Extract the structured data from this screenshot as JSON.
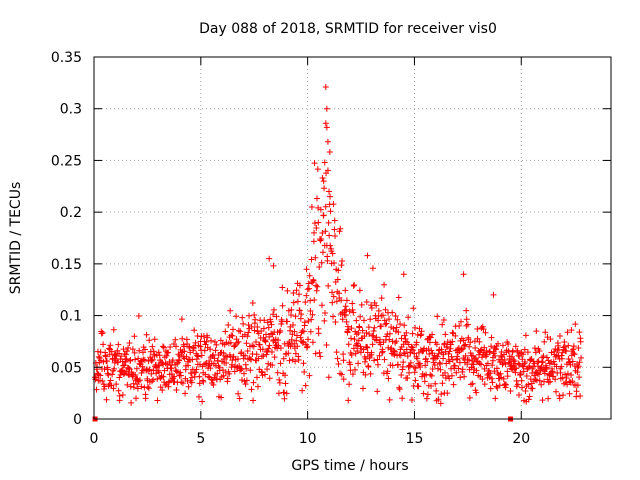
{
  "chart_data": {
    "type": "scatter",
    "title": "Day 088 of 2018, SRMTID for receiver vis0",
    "xlabel": "GPS time / hours",
    "ylabel": "SRMTID / TECUs",
    "xlim": [
      0,
      24.2
    ],
    "ylim": [
      0,
      0.35
    ],
    "xticks": [
      0,
      5,
      10,
      15,
      20
    ],
    "xtick_labels": [
      "0",
      "5",
      "10",
      "15",
      "20"
    ],
    "yticks": [
      0,
      0.05,
      0.1,
      0.15,
      0.2,
      0.25,
      0.3,
      0.35
    ],
    "ytick_labels": [
      "0",
      "0.05",
      "0.1",
      "0.15",
      "0.2",
      "0.25",
      "0.3",
      "0.35"
    ],
    "grid": true,
    "marker": "plus",
    "color": "#ff0000",
    "zero_markers": [
      {
        "x": 0.05,
        "y": 0
      },
      {
        "x": 19.5,
        "y": 0
      }
    ],
    "series": [
      {
        "name": "SRMTID",
        "profile": [
          {
            "x": 0.0,
            "y": 0.05,
            "spread": 0.015
          },
          {
            "x": 1.0,
            "y": 0.052,
            "spread": 0.015
          },
          {
            "x": 2.0,
            "y": 0.05,
            "spread": 0.015
          },
          {
            "x": 3.0,
            "y": 0.048,
            "spread": 0.014
          },
          {
            "x": 4.0,
            "y": 0.052,
            "spread": 0.016
          },
          {
            "x": 5.0,
            "y": 0.055,
            "spread": 0.017
          },
          {
            "x": 6.0,
            "y": 0.058,
            "spread": 0.018
          },
          {
            "x": 7.0,
            "y": 0.06,
            "spread": 0.019
          },
          {
            "x": 8.0,
            "y": 0.07,
            "spread": 0.022
          },
          {
            "x": 9.0,
            "y": 0.075,
            "spread": 0.024
          },
          {
            "x": 9.8,
            "y": 0.08,
            "spread": 0.026
          },
          {
            "x": 10.3,
            "y": 0.13,
            "spread": 0.035
          },
          {
            "x": 10.8,
            "y": 0.18,
            "spread": 0.05
          },
          {
            "x": 11.2,
            "y": 0.15,
            "spread": 0.045
          },
          {
            "x": 11.6,
            "y": 0.09,
            "spread": 0.028
          },
          {
            "x": 12.5,
            "y": 0.08,
            "spread": 0.024
          },
          {
            "x": 13.5,
            "y": 0.075,
            "spread": 0.022
          },
          {
            "x": 14.5,
            "y": 0.065,
            "spread": 0.02
          },
          {
            "x": 15.5,
            "y": 0.055,
            "spread": 0.017
          },
          {
            "x": 16.5,
            "y": 0.052,
            "spread": 0.016
          },
          {
            "x": 17.5,
            "y": 0.06,
            "spread": 0.019
          },
          {
            "x": 18.5,
            "y": 0.058,
            "spread": 0.018
          },
          {
            "x": 19.5,
            "y": 0.048,
            "spread": 0.013
          },
          {
            "x": 20.5,
            "y": 0.05,
            "spread": 0.015
          },
          {
            "x": 21.5,
            "y": 0.048,
            "spread": 0.015
          },
          {
            "x": 22.6,
            "y": 0.06,
            "spread": 0.017
          }
        ],
        "outliers": [
          {
            "x": 10.85,
            "y": 0.321
          },
          {
            "x": 10.9,
            "y": 0.3
          },
          {
            "x": 10.85,
            "y": 0.286
          },
          {
            "x": 10.9,
            "y": 0.282
          },
          {
            "x": 10.95,
            "y": 0.268
          },
          {
            "x": 10.8,
            "y": 0.248
          },
          {
            "x": 10.75,
            "y": 0.23
          },
          {
            "x": 11.0,
            "y": 0.22
          },
          {
            "x": 11.05,
            "y": 0.215
          },
          {
            "x": 10.2,
            "y": 0.205
          },
          {
            "x": 10.5,
            "y": 0.19
          },
          {
            "x": 10.3,
            "y": 0.18
          },
          {
            "x": 12.8,
            "y": 0.158
          },
          {
            "x": 14.5,
            "y": 0.14
          },
          {
            "x": 17.3,
            "y": 0.14
          },
          {
            "x": 8.2,
            "y": 0.155
          },
          {
            "x": 8.4,
            "y": 0.148
          },
          {
            "x": 18.7,
            "y": 0.12
          },
          {
            "x": 1.2,
            "y": 0.018
          },
          {
            "x": 11.9,
            "y": 0.018
          },
          {
            "x": 16.4,
            "y": 0.025
          },
          {
            "x": 21.8,
            "y": 0.02
          }
        ],
        "x_start": 0.05,
        "x_end": 22.8,
        "n_points": 1400
      }
    ]
  }
}
